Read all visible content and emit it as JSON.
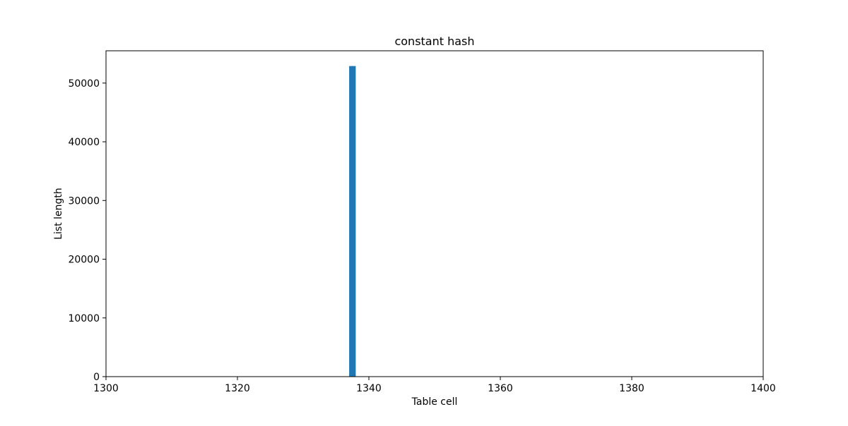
{
  "chart_data": {
    "type": "bar",
    "title": "constant hash",
    "xlabel": "Table cell",
    "ylabel": "List length",
    "xlim": [
      1300,
      1400
    ],
    "ylim": [
      0,
      55500
    ],
    "x_ticks": [
      1300,
      1320,
      1340,
      1360,
      1380,
      1400
    ],
    "y_ticks": [
      0,
      10000,
      20000,
      30000,
      40000,
      50000
    ],
    "bar_width": 1,
    "grid": false,
    "legend": "none",
    "colors": {
      "bar": "#1f77b4",
      "axes": "#000000",
      "background": "#ffffff"
    },
    "bars": [
      {
        "x": 1337,
        "value": 52900
      }
    ]
  }
}
